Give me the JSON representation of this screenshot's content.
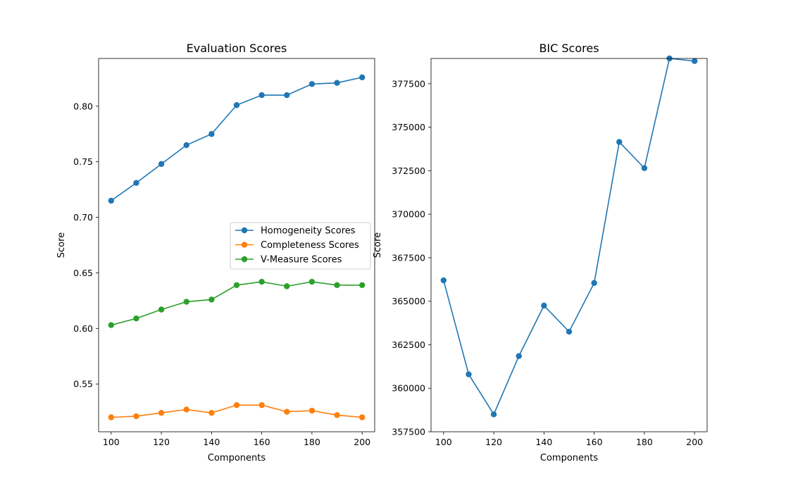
{
  "chart_data": [
    {
      "type": "line",
      "title": "Evaluation Scores",
      "xlabel": "Components",
      "ylabel": "Score",
      "x": [
        100,
        110,
        120,
        130,
        140,
        150,
        160,
        170,
        180,
        190,
        200
      ],
      "xlim": [
        95,
        205
      ],
      "ylim": [
        0.507,
        0.843
      ],
      "xticks": [
        100,
        120,
        140,
        160,
        180,
        200
      ],
      "yticks": [
        0.55,
        0.6,
        0.65,
        0.7,
        0.75,
        0.8
      ],
      "ytick_decimals": 2,
      "grid": false,
      "legend_position": "center-right",
      "series": [
        {
          "name": "Homogeneity Scores",
          "color": "#1f77b4",
          "values": [
            0.715,
            0.731,
            0.748,
            0.765,
            0.775,
            0.801,
            0.81,
            0.81,
            0.82,
            0.821,
            0.826
          ]
        },
        {
          "name": "Completeness Scores",
          "color": "#ff7f0e",
          "values": [
            0.52,
            0.521,
            0.524,
            0.527,
            0.524,
            0.531,
            0.531,
            0.525,
            0.526,
            0.522,
            0.52
          ]
        },
        {
          "name": "V-Measure Scores",
          "color": "#2ca02c",
          "values": [
            0.603,
            0.609,
            0.617,
            0.624,
            0.626,
            0.639,
            0.642,
            0.638,
            0.642,
            0.639,
            0.639
          ]
        }
      ]
    },
    {
      "type": "line",
      "title": "BIC Scores",
      "xlabel": "Components",
      "ylabel": "Score",
      "x": [
        100,
        110,
        120,
        130,
        140,
        150,
        160,
        170,
        180,
        190,
        200
      ],
      "xlim": [
        95,
        205
      ],
      "ylim": [
        357500,
        378950
      ],
      "xticks": [
        100,
        120,
        140,
        160,
        180,
        200
      ],
      "yticks": [
        357500,
        360000,
        362500,
        365000,
        367500,
        370000,
        372500,
        375000,
        377500
      ],
      "ytick_decimals": 0,
      "grid": false,
      "series": [
        {
          "color": "#1f77b4",
          "values": [
            366200,
            360800,
            358500,
            361850,
            364750,
            363250,
            366050,
            374150,
            372650,
            378950,
            378800
          ]
        }
      ]
    }
  ]
}
